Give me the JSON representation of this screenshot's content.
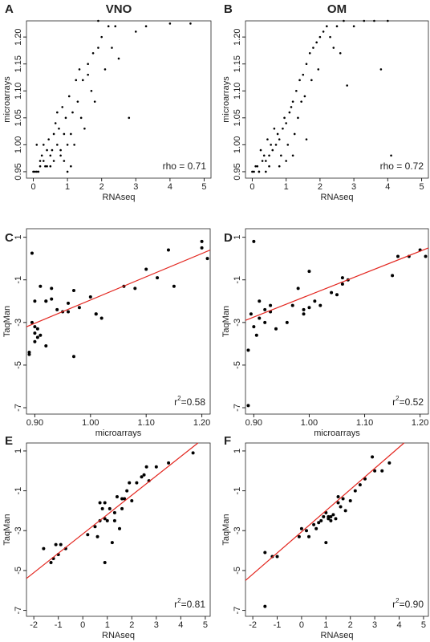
{
  "chart_data": [
    {
      "type": "scatter",
      "panel": "A",
      "title": "VNO",
      "x_label": "RNAseq",
      "y_label": "microarrays",
      "annotation": {
        "text": "rho = 0.71"
      },
      "xlim": [
        -0.2,
        5.2
      ],
      "ylim": [
        0.938,
        1.23
      ],
      "xticks": [
        0,
        1,
        2,
        3,
        4,
        5
      ],
      "yticks": [
        0.95,
        {
          "value": 1,
          "label": "1.00"
        },
        1.05,
        {
          "value": 1.1,
          "label": "1.10"
        },
        1.15,
        {
          "value": 1.2,
          "label": "1.20"
        }
      ],
      "color": "#000000",
      "points": {
        "x": [
          0.1,
          0.2,
          0.3,
          0.4,
          0.5,
          0.6,
          0.7,
          0.8,
          0.9,
          1.0,
          0.05,
          0.15,
          0.35,
          0.55,
          0.75,
          0.95,
          1.15,
          1.3,
          0.25,
          0.45,
          0.65,
          0.85,
          1.05,
          1.25,
          1.45,
          1.6,
          1.75,
          1.9,
          2.0,
          2.2,
          0.5,
          0.8,
          1.1,
          1.4,
          1.7,
          2.1,
          2.4,
          0.3,
          0.6,
          0.9,
          1.2,
          1.5,
          1.8,
          2.5,
          3.0,
          3.3,
          4.0,
          4.6,
          0.2,
          1.0,
          1.6,
          1.35,
          0.7,
          2.3,
          2.8,
          0.4,
          1.9,
          1.1,
          0.0,
          0.1
        ],
        "y": [
          0.95,
          0.96,
          0.97,
          0.96,
          0.98,
          0.97,
          1.0,
          0.99,
          1.02,
          1.0,
          0.95,
          0.95,
          0.96,
          0.99,
          1.03,
          1.05,
          1.06,
          1.08,
          0.98,
          1.01,
          1.04,
          1.07,
          1.09,
          1.12,
          1.12,
          1.15,
          1.17,
          1.18,
          1.2,
          1.22,
          0.96,
          0.98,
          1.02,
          1.05,
          1.1,
          1.14,
          1.22,
          1.0,
          1.02,
          0.97,
          1.0,
          1.03,
          1.08,
          1.16,
          1.21,
          1.22,
          1.225,
          1.225,
          0.97,
          0.95,
          1.13,
          1.14,
          1.06,
          1.18,
          1.05,
          0.99,
          1.23,
          0.96,
          0.95,
          1.0
        ]
      }
    },
    {
      "type": "scatter",
      "panel": "B",
      "title": "OM",
      "x_label": "RNAseq",
      "y_label": "microarrays",
      "annotation": {
        "text": "rho = 0.72"
      },
      "xlim": [
        -0.2,
        5.2
      ],
      "ylim": [
        0.938,
        1.23
      ],
      "xticks": [
        0,
        1,
        2,
        3,
        4,
        5
      ],
      "yticks": [
        0.95,
        {
          "value": 1,
          "label": "1.00"
        },
        1.05,
        {
          "value": 1.1,
          "label": "1.10"
        },
        1.15,
        {
          "value": 1.2,
          "label": "1.20"
        }
      ],
      "color": "#000000",
      "points": {
        "x": [
          0.05,
          0.1,
          0.2,
          0.3,
          0.4,
          0.5,
          0.6,
          0.7,
          0.8,
          0.9,
          1.0,
          1.1,
          1.2,
          1.3,
          1.4,
          1.5,
          1.6,
          1.7,
          1.8,
          1.9,
          2.0,
          2.1,
          2.2,
          2.3,
          2.5,
          2.7,
          3.0,
          3.3,
          3.6,
          4.0,
          0.15,
          0.35,
          0.55,
          0.75,
          0.95,
          1.15,
          1.35,
          1.55,
          1.75,
          1.95,
          0.25,
          0.45,
          0.65,
          0.85,
          1.05,
          1.25,
          1.45,
          2.4,
          2.8,
          3.8,
          0.0,
          0.2,
          0.5,
          1.0,
          1.6,
          0.4,
          0.8,
          1.2,
          2.6,
          4.1
        ],
        "y": [
          0.95,
          0.96,
          0.95,
          0.97,
          0.97,
          0.98,
          0.99,
          1.0,
          1.01,
          1.03,
          1.04,
          1.06,
          1.08,
          1.1,
          1.12,
          1.13,
          1.15,
          1.17,
          1.18,
          1.19,
          1.2,
          1.21,
          1.22,
          1.2,
          1.22,
          1.23,
          1.22,
          1.23,
          1.23,
          1.23,
          0.96,
          0.98,
          1.0,
          1.02,
          1.05,
          1.07,
          1.05,
          1.09,
          1.12,
          1.14,
          0.99,
          1.01,
          1.03,
          0.98,
          1.0,
          1.02,
          1.08,
          1.18,
          1.11,
          1.14,
          0.95,
          0.95,
          0.96,
          0.97,
          1.01,
          0.95,
          0.96,
          0.98,
          1.17,
          0.98
        ]
      }
    },
    {
      "type": "scatter",
      "panel": "C",
      "x_label": "microarrays",
      "y_label": "TaqMan",
      "annotation": {
        "base": "r",
        "sup": "2",
        "text": "=0.58"
      },
      "xlim": [
        0.885,
        1.215
      ],
      "ylim": [
        -7.3,
        1.4
      ],
      "xticks": [
        {
          "value": 0.9,
          "label": "0.90"
        },
        {
          "value": 1,
          "label": "1.00"
        },
        {
          "value": 1.1,
          "label": "1.10"
        },
        {
          "value": 1.2,
          "label": "1.20"
        }
      ],
      "yticks": [
        1,
        -1,
        -3,
        -5,
        -7
      ],
      "color": "#000000",
      "fit_color": "#e3261f",
      "fit": {
        "x": [
          0.885,
          1.215
        ],
        "y": [
          -3.2,
          0.4
        ]
      },
      "points": {
        "x": [
          0.89,
          0.89,
          0.895,
          0.9,
          0.9,
          0.905,
          0.91,
          0.91,
          0.92,
          0.92,
          0.93,
          0.93,
          0.94,
          0.95,
          0.96,
          0.97,
          0.98,
          1.0,
          1.01,
          1.02,
          1.06,
          1.08,
          1.1,
          1.12,
          1.14,
          1.15,
          1.2,
          1.2,
          1.21,
          0.895,
          0.9,
          0.905,
          0.9,
          0.92,
          0.96,
          0.97,
          1.01
        ],
        "y": [
          -4.5,
          -4.4,
          0.25,
          -3.9,
          -3.5,
          -3.7,
          -3.6,
          -1.3,
          -2.0,
          -4.1,
          -1.4,
          -1.9,
          -2.4,
          -2.5,
          -2.5,
          -4.6,
          -2.3,
          -1.8,
          -2.6,
          -2.8,
          -1.3,
          -1.4,
          -0.5,
          -0.9,
          0.4,
          -1.3,
          0.8,
          0.5,
          0.0,
          -3.0,
          -3.2,
          -3.3,
          -2.0,
          -2.0,
          -2.1,
          -1.5,
          -2.6
        ]
      }
    },
    {
      "type": "scatter",
      "panel": "D",
      "x_label": "microarrays",
      "y_label": "TaqMan",
      "annotation": {
        "base": "r",
        "sup": "2",
        "text": "=0.52"
      },
      "xlim": [
        0.885,
        1.215
      ],
      "ylim": [
        -7.3,
        1.4
      ],
      "xticks": [
        {
          "value": 0.9,
          "label": "0.90"
        },
        {
          "value": 1,
          "label": "1.00"
        },
        {
          "value": 1.1,
          "label": "1.10"
        },
        {
          "value": 1.2,
          "label": "1.20"
        }
      ],
      "yticks": [
        1,
        -1,
        -3,
        -5,
        -7
      ],
      "color": "#000000",
      "fit_color": "#e3261f",
      "fit": {
        "x": [
          0.885,
          1.215
        ],
        "y": [
          -2.9,
          0.5
        ]
      },
      "points": {
        "x": [
          0.89,
          0.89,
          0.9,
          0.9,
          0.905,
          0.91,
          0.92,
          0.92,
          0.93,
          0.93,
          0.94,
          0.96,
          0.98,
          0.99,
          1.0,
          1.0,
          1.01,
          1.02,
          1.04,
          1.05,
          1.06,
          1.06,
          1.07,
          1.15,
          1.16,
          1.18,
          1.2,
          1.21,
          0.895,
          0.91,
          0.97,
          0.99
        ],
        "y": [
          -4.3,
          -6.9,
          0.8,
          -3.2,
          -3.6,
          -2.8,
          -3.0,
          -2.4,
          -2.2,
          -2.5,
          -3.3,
          -3.0,
          -1.4,
          -2.6,
          -2.3,
          -0.6,
          -2.0,
          -2.2,
          -1.6,
          -1.7,
          -1.2,
          -0.9,
          -1.0,
          -0.8,
          0.1,
          0.1,
          0.4,
          0.1,
          -2.6,
          -2.0,
          -2.2,
          -2.4
        ]
      }
    },
    {
      "type": "scatter",
      "panel": "E",
      "x_label": "RNAseq",
      "y_label": "TaqMan",
      "annotation": {
        "base": "r",
        "sup": "2",
        "text": "=0.81"
      },
      "xlim": [
        -2.3,
        5.2
      ],
      "ylim": [
        -7.3,
        1.4
      ],
      "xticks": [
        -2,
        -1,
        0,
        1,
        2,
        3,
        4,
        5
      ],
      "yticks": [
        1,
        -1,
        -3,
        -5,
        -7
      ],
      "color": "#000000",
      "fit_color": "#e3261f",
      "fit": {
        "x": [
          -2.3,
          4.7
        ],
        "y": [
          -5.4,
          1.4
        ]
      },
      "points": {
        "x": [
          -1.6,
          -1.3,
          -1.1,
          -1.0,
          -0.9,
          -0.7,
          0.2,
          0.5,
          0.6,
          0.7,
          0.8,
          0.9,
          0.9,
          1.0,
          1.1,
          1.2,
          1.3,
          1.4,
          1.5,
          1.6,
          1.7,
          1.8,
          1.9,
          2.0,
          2.2,
          2.4,
          2.6,
          2.7,
          3.0,
          3.5,
          4.5,
          0.7,
          0.9,
          1.3,
          1.6,
          2.5,
          -1.2
        ],
        "y": [
          -3.9,
          -4.6,
          -3.7,
          -4.2,
          -3.7,
          -3.9,
          -3.2,
          -2.8,
          -3.3,
          -1.6,
          -1.9,
          -4.6,
          -2.4,
          -2.5,
          -1.9,
          -3.6,
          -2.5,
          -1.3,
          -2.9,
          -1.4,
          -1.4,
          -1.0,
          -0.6,
          -1.5,
          -0.6,
          -0.3,
          0.2,
          -0.5,
          0.2,
          0.4,
          0.9,
          -2.5,
          -1.6,
          -2.1,
          -1.9,
          -0.2,
          -4.4
        ]
      }
    },
    {
      "type": "scatter",
      "panel": "F",
      "x_label": "RNAseq",
      "y_label": "TaqMan",
      "annotation": {
        "base": "r",
        "sup": "2",
        "text": "=0.90"
      },
      "xlim": [
        -2.3,
        5.2
      ],
      "ylim": [
        -7.3,
        1.4
      ],
      "xticks": [
        -2,
        -1,
        0,
        1,
        2,
        3,
        4,
        5
      ],
      "yticks": [
        1,
        -1,
        -3,
        -5,
        -7
      ],
      "color": "#000000",
      "fit_color": "#e3261f",
      "fit": {
        "x": [
          -2.3,
          4.2
        ],
        "y": [
          -5.5,
          1.4
        ]
      },
      "points": {
        "x": [
          -1.5,
          -1.5,
          -1.2,
          -1.0,
          -0.1,
          0.0,
          0.2,
          0.3,
          0.5,
          0.6,
          0.7,
          0.8,
          0.9,
          1.0,
          1.0,
          1.1,
          1.2,
          1.3,
          1.4,
          1.5,
          1.6,
          1.7,
          1.8,
          2.0,
          2.2,
          2.4,
          2.6,
          2.9,
          3.0,
          3.3,
          3.6,
          1.1,
          1.2,
          1.5
        ],
        "y": [
          -4.1,
          -6.8,
          -4.3,
          -4.3,
          -3.3,
          -2.9,
          -3.0,
          -3.3,
          -2.7,
          -2.9,
          -2.6,
          -2.5,
          -2.3,
          -3.6,
          -2.1,
          -2.4,
          -2.3,
          -2.2,
          -2.4,
          -1.3,
          -1.8,
          -1.4,
          -2.0,
          -1.5,
          -1.0,
          -0.7,
          -0.4,
          0.7,
          0.0,
          0.0,
          0.4,
          -2.3,
          -2.5,
          -1.6
        ]
      }
    }
  ]
}
